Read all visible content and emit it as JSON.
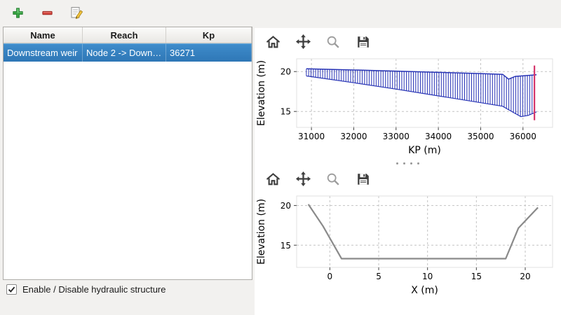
{
  "app_toolbar": {
    "buttons": [
      {
        "id": "add",
        "icon": "plus-icon"
      },
      {
        "id": "remove",
        "icon": "minus-icon"
      },
      {
        "id": "edit",
        "icon": "edit-icon"
      }
    ]
  },
  "structures_table": {
    "columns": [
      "Name",
      "Reach",
      "Kp"
    ],
    "rows": [
      {
        "name": "Downstream weir",
        "reach": "Node 2 -> Down…",
        "kp": "36271",
        "selected": true
      }
    ],
    "selection_color": "#3584c6"
  },
  "checkbox": {
    "label": "Enable / Disable hydraulic structure",
    "checked": true
  },
  "plot_toolbars": {
    "icons": [
      "home",
      "pan",
      "zoom",
      "save"
    ]
  },
  "colors": {
    "selection_blue": "#3584c6",
    "hatch_blue": "#2733b5",
    "marker_red": "#d5356b",
    "profile_gray": "#8a8a8a"
  },
  "chart_data": [
    {
      "type": "area",
      "title": "",
      "xlabel": "KP (m)",
      "ylabel": "Elevation (m)",
      "xlim": [
        30650,
        36700
      ],
      "ylim": [
        13.0,
        21.6
      ],
      "xticks": [
        31000,
        32000,
        33000,
        34000,
        35000,
        36000
      ],
      "yticks": [
        15,
        20
      ],
      "grid": true,
      "hatch_color": "#2733b5",
      "hatch_step": 55,
      "top_profile": [
        [
          30880,
          20.35
        ],
        [
          32000,
          20.2
        ],
        [
          33000,
          20.05
        ],
        [
          34000,
          19.9
        ],
        [
          35000,
          19.75
        ],
        [
          35520,
          19.65
        ],
        [
          35660,
          19.05
        ],
        [
          35820,
          19.4
        ],
        [
          36320,
          19.6
        ]
      ],
      "bottom_profile": [
        [
          30880,
          19.45
        ],
        [
          32000,
          18.6
        ],
        [
          33000,
          17.8
        ],
        [
          34000,
          16.95
        ],
        [
          35000,
          16.1
        ],
        [
          35520,
          15.65
        ],
        [
          35780,
          14.85
        ],
        [
          35950,
          14.35
        ],
        [
          36120,
          14.5
        ],
        [
          36320,
          14.95
        ]
      ],
      "marker_line": {
        "x": 36271,
        "y0": 13.9,
        "y1": 20.75,
        "color": "#d5356b"
      }
    },
    {
      "type": "line",
      "title": "",
      "xlabel": "X (m)",
      "ylabel": "Elevation (m)",
      "xlim": [
        -3.4,
        22.8
      ],
      "ylim": [
        12.2,
        21.2
      ],
      "xticks": [
        0,
        5,
        10,
        15,
        20
      ],
      "yticks": [
        15,
        20
      ],
      "grid": true,
      "line_color": "#8a8a8a",
      "line_width": 2.2,
      "points": [
        [
          -2.2,
          20.15
        ],
        [
          -0.7,
          17.4
        ],
        [
          1.2,
          13.3
        ],
        [
          18.0,
          13.3
        ],
        [
          19.3,
          17.15
        ],
        [
          21.3,
          19.75
        ]
      ]
    }
  ]
}
